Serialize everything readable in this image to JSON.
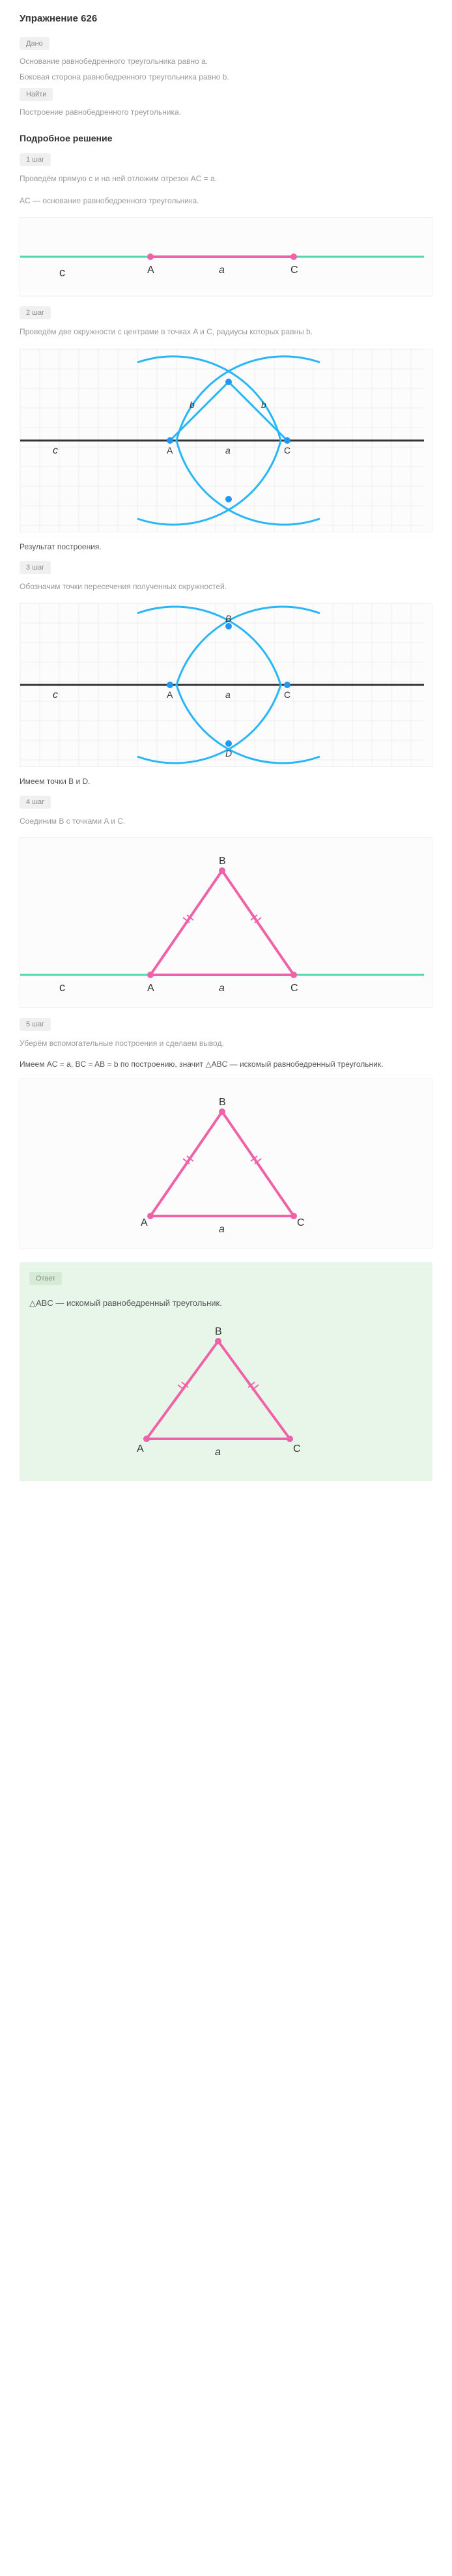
{
  "title": "Упражнение 626",
  "given_label": "Дано",
  "given_line1": "Основание равнобедренного треугольника равно a.",
  "given_line2": "Боковая сторона равнобедренного треугольника равно b.",
  "find_label": "Найти",
  "find_text": "Построение равнобедренного треугольника.",
  "solution_title": "Подробное решение",
  "step1_label": "1 шаг",
  "step1_text1": "Проведём прямую c и на ней отложим отрезок AC = a.",
  "step1_text2": "AC — основание равнобедренного треугольника.",
  "step2_label": "2 шаг",
  "step2_text": "Проведём две окружности с центрами в точках A и C, радиусы которых равны b.",
  "step2_result": "Результат построения.",
  "step3_label": "3 шаг",
  "step3_text": "Обозначим точки пересечения полученных окружностей.",
  "step3_result": "Имеем точки B и D.",
  "step4_label": "4 шаг",
  "step4_text": "Соединим B с точками A и C.",
  "step5_label": "5 шаг",
  "step5_text": "Уберём вспомогательные построения и сделаем вывод.",
  "step5_conclusion": "Имеем AC = a, BC = AB = b по построению, значит △ABC — искомый равнобедренный треугольник.",
  "answer_label": "Ответ",
  "answer_text": "△ABC — искомый равнобедренный треугольник.",
  "labels": {
    "A": "A",
    "B": "B",
    "C": "C",
    "D": "D",
    "a": "a",
    "b": "b",
    "c": "c"
  },
  "colors": {
    "green_line": "#4dd9a8",
    "pink_line": "#f062a8",
    "pink_dot": "#f062a8",
    "cyan_arc": "#29b6f6",
    "blue_dot": "#2196f3",
    "black_line": "#333333",
    "grid": "#eeeeee",
    "bg_grid": "#fcfcfc",
    "result_bg": "#e8f5e9"
  },
  "grid": {
    "cell": 30,
    "cols": 20,
    "rows_small": 6,
    "rows_med": 9
  }
}
